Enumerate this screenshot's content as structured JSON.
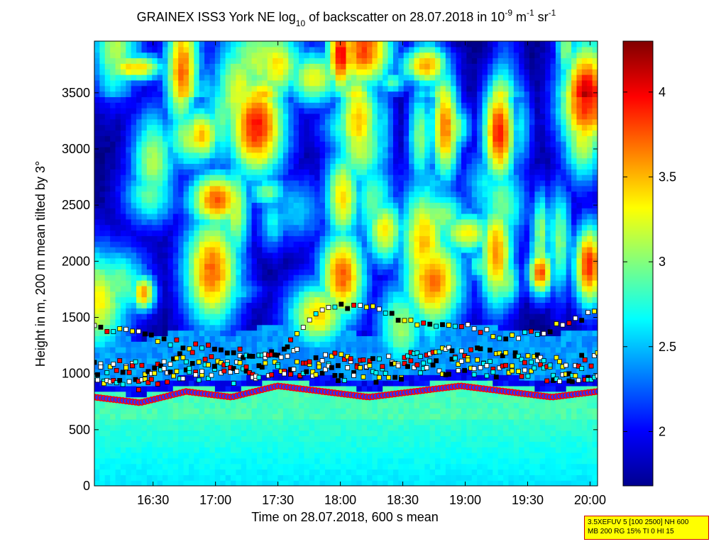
{
  "chart_data": {
    "type": "heatmap",
    "title_parts": {
      "prefix": "GRAINEX ISS3 York NE log",
      "prefix_sub": "10",
      "middle": " of backscatter on 28.07.2018 in 10",
      "exp1": "-9",
      "unit1": " m",
      "exp2": "-1",
      "unit2": " sr",
      "exp3": "-1"
    },
    "xlabel": "Time on 28.07.2018, 600 s mean",
    "ylabel": "Height in m, 200 m mean tilted by 3°",
    "x_range_hours": [
      16.03,
      20.06
    ],
    "x_tick_values_hours": [
      16.5,
      17.0,
      17.5,
      18.0,
      18.5,
      19.0,
      19.5,
      20.0
    ],
    "x_tick_labels": [
      "16:30",
      "17:00",
      "17:30",
      "18:00",
      "18:30",
      "19:00",
      "19:30",
      "20:00"
    ],
    "ylim": [
      0,
      3960
    ],
    "y_ticks": [
      0,
      500,
      1000,
      1500,
      2000,
      2500,
      3000,
      3500
    ],
    "y_tick_labels": [
      "0",
      "500",
      "1000",
      "1500",
      "2000",
      "2500",
      "3000",
      "3500"
    ],
    "colorbar": {
      "range": [
        1.68,
        4.3
      ],
      "ticks": [
        2,
        2.5,
        3,
        3.5,
        4
      ],
      "tick_labels": [
        "2",
        "2.5",
        "3",
        "3.5",
        "4"
      ],
      "colormap": "jet"
    },
    "approx_layers": {
      "surface_layer_top_m": 600,
      "mixed_layer_top_m": [
        850,
        800,
        900,
        850,
        950,
        900,
        850,
        900,
        950,
        900,
        850,
        900
      ],
      "elevated_layer_m": [
        1400,
        1350,
        1250,
        1200,
        1150,
        1600,
        1600,
        1450,
        1450,
        1300,
        1400,
        1550
      ]
    }
  },
  "notes": {
    "line1": "3.5XEFUV 5 [100 2500] NH 600",
    "line2": "MB 200 RG 15% TI 0 HI 15"
  },
  "colors": {
    "notes_background": "#ffff00",
    "notes_border": "#cc0000"
  }
}
